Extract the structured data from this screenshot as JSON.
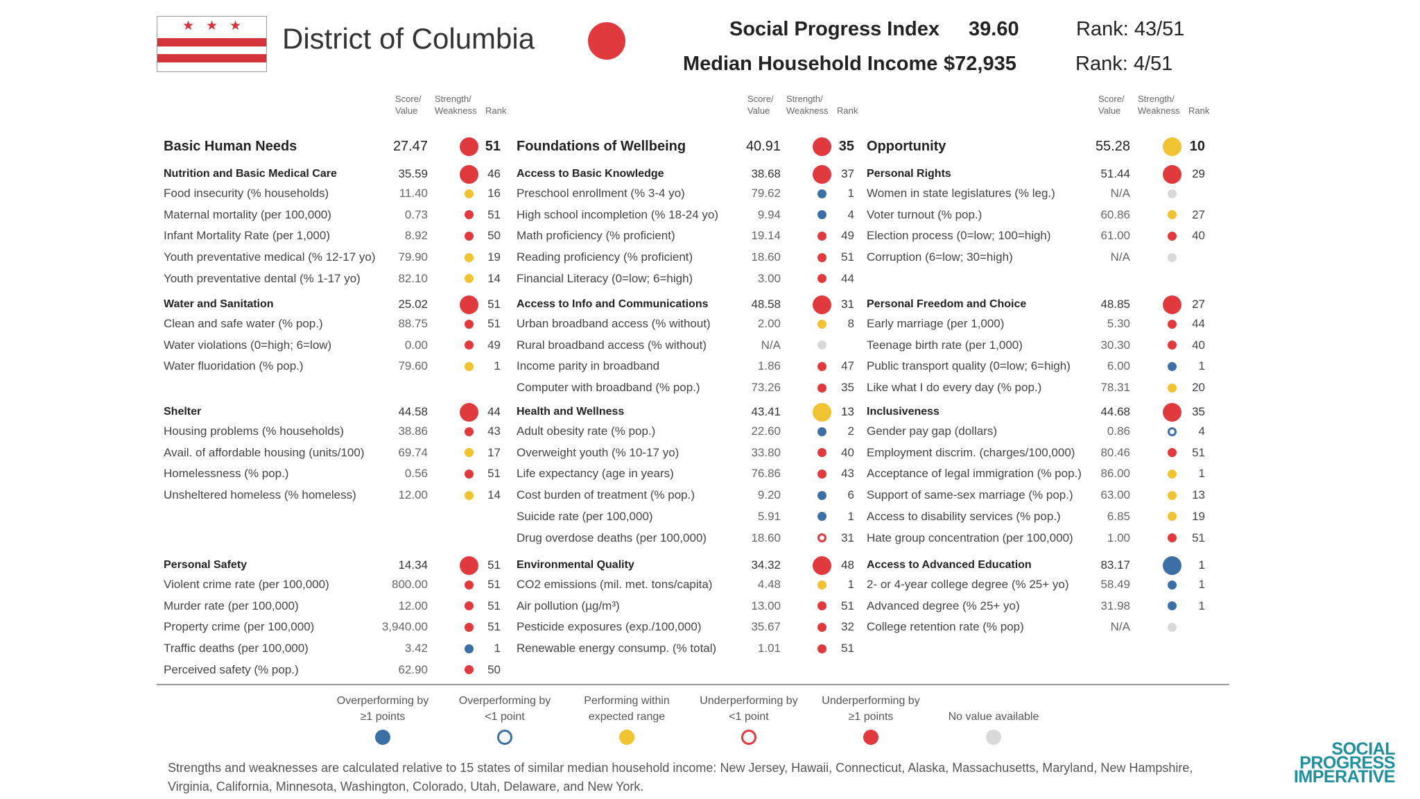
{
  "header": {
    "state": "District of Columbia",
    "spi_label": "Social Progress Index",
    "spi_value": "39.60",
    "spi_rank": "Rank: 43/51",
    "income_label": "Median Household Income",
    "income_value": "$72,935",
    "income_rank": "Rank: 4/51",
    "overall_status": "under1"
  },
  "flag": {
    "stars": "★★★"
  },
  "column_headers": {
    "score": "Score/",
    "score2": "Value",
    "strength": "Strength/",
    "strength2": "Weakness",
    "rank": "Rank"
  },
  "colors": {
    "over1": "#3b6fa6",
    "over": "#3b6fa6",
    "within": "#f1c232",
    "under": "#e0393e",
    "under1": "#e0393e",
    "na": "#d9d9d9"
  },
  "columns": [
    {
      "dimension": {
        "label": "Basic Human Needs",
        "value": "27.47",
        "status": "under1",
        "rank": "51"
      },
      "components": [
        {
          "label": "Nutrition and Basic Medical Care",
          "value": "35.59",
          "status": "under1",
          "rank": "46",
          "indicators": [
            {
              "label": "Food insecurity (% households)",
              "value": "11.40",
              "status": "within",
              "rank": "16"
            },
            {
              "label": "Maternal mortality (per 100,000)",
              "value": "0.73",
              "status": "under1",
              "rank": "51"
            },
            {
              "label": "Infant Mortality Rate (per 1,000)",
              "value": "8.92",
              "status": "under1",
              "rank": "50"
            },
            {
              "label": "Youth preventative medical (% 12-17 yo)",
              "value": "79.90",
              "status": "within",
              "rank": "19"
            },
            {
              "label": "Youth preventative dental (% 1-17 yo)",
              "value": "82.10",
              "status": "within",
              "rank": "14"
            }
          ]
        },
        {
          "label": "Water and Sanitation",
          "value": "25.02",
          "status": "under1",
          "rank": "51",
          "indicators": [
            {
              "label": "Clean and safe water (% pop.)",
              "value": "88.75",
              "status": "under1",
              "rank": "51"
            },
            {
              "label": "Water violations (0=high; 6=low)",
              "value": "0.00",
              "status": "under1",
              "rank": "49"
            },
            {
              "label": "Water fluoridation (% pop.)",
              "value": "79.60",
              "status": "within",
              "rank": "1"
            }
          ]
        },
        {
          "label": "Shelter",
          "value": "44.58",
          "status": "under1",
          "rank": "44",
          "indicators": [
            {
              "label": "Housing problems (% households)",
              "value": "38.86",
              "status": "under1",
              "rank": "43"
            },
            {
              "label": "Avail. of affordable housing (units/100)",
              "value": "69.74",
              "status": "within",
              "rank": "17"
            },
            {
              "label": "Homelessness (% pop.)",
              "value": "0.56",
              "status": "under1",
              "rank": "51"
            },
            {
              "label": "Unsheltered homeless (% homeless)",
              "value": "12.00",
              "status": "within",
              "rank": "14"
            }
          ]
        },
        {
          "label": "Personal Safety",
          "value": "14.34",
          "status": "under1",
          "rank": "51",
          "indicators": [
            {
              "label": "Violent crime rate (per 100,000)",
              "value": "800.00",
              "status": "under1",
              "rank": "51"
            },
            {
              "label": "Murder rate (per 100,000)",
              "value": "12.00",
              "status": "under1",
              "rank": "51"
            },
            {
              "label": "Property crime (per 100,000)",
              "value": "3,940.00",
              "status": "under1",
              "rank": "51"
            },
            {
              "label": "Traffic deaths (per 100,000)",
              "value": "3.42",
              "status": "over1",
              "rank": "1"
            },
            {
              "label": "Perceived safety (% pop.)",
              "value": "62.90",
              "status": "under1",
              "rank": "50"
            }
          ]
        }
      ]
    },
    {
      "dimension": {
        "label": "Foundations of Wellbeing",
        "value": "40.91",
        "status": "under1",
        "rank": "35"
      },
      "components": [
        {
          "label": "Access to Basic Knowledge",
          "value": "38.68",
          "status": "under1",
          "rank": "37",
          "indicators": [
            {
              "label": "Preschool enrollment (% 3-4 yo)",
              "value": "79.62",
              "status": "over1",
              "rank": "1"
            },
            {
              "label": "High school incompletion (% 18-24 yo)",
              "value": "9.94",
              "status": "over1",
              "rank": "4"
            },
            {
              "label": "Math proficiency (% proficient)",
              "value": "19.14",
              "status": "under1",
              "rank": "49"
            },
            {
              "label": "Reading proficiency (% proficient)",
              "value": "18.60",
              "status": "under1",
              "rank": "51"
            },
            {
              "label": "Financial Literacy (0=low; 6=high)",
              "value": "3.00",
              "status": "under1",
              "rank": "44"
            }
          ]
        },
        {
          "label": "Access to Info and Communications",
          "value": "48.58",
          "status": "under1",
          "rank": "31",
          "indicators": [
            {
              "label": "Urban broadband access (% without)",
              "value": "2.00",
              "status": "within",
              "rank": "8"
            },
            {
              "label": "Rural broadband access (% without)",
              "value": "N/A",
              "status": "na",
              "rank": ""
            },
            {
              "label": "Income parity in broadband",
              "value": "1.86",
              "status": "under1",
              "rank": "47"
            },
            {
              "label": "Computer with broadband (% pop.)",
              "value": "73.26",
              "status": "under1",
              "rank": "35"
            }
          ]
        },
        {
          "label": "Health and Wellness",
          "value": "43.41",
          "status": "within",
          "rank": "13",
          "indicators": [
            {
              "label": "Adult obesity rate (% pop.)",
              "value": "22.60",
              "status": "over1",
              "rank": "2"
            },
            {
              "label": "Overweight youth (% 10-17 yo)",
              "value": "33.80",
              "status": "under1",
              "rank": "40"
            },
            {
              "label": "Life expectancy (age in years)",
              "value": "76.86",
              "status": "under1",
              "rank": "43"
            },
            {
              "label": "Cost burden of treatment (% pop.)",
              "value": "9.20",
              "status": "over1",
              "rank": "6"
            },
            {
              "label": "Suicide rate (per 100,000)",
              "value": "5.91",
              "status": "over1",
              "rank": "1"
            },
            {
              "label": "Drug overdose deaths (per 100,000)",
              "value": "18.60",
              "status": "under",
              "rank": "31"
            }
          ]
        },
        {
          "label": "Environmental Quality",
          "value": "34.32",
          "status": "under1",
          "rank": "48",
          "indicators": [
            {
              "label": "CO2 emissions (mil. met. tons/capita)",
              "value": "4.48",
              "status": "within",
              "rank": "1"
            },
            {
              "label": "Air pollution (µg/m³)",
              "value": "13.00",
              "status": "under1",
              "rank": "51"
            },
            {
              "label": "Pesticide exposures (exp./100,000)",
              "value": "35.67",
              "status": "under1",
              "rank": "32"
            },
            {
              "label": "Renewable energy consump. (% total)",
              "value": "1.01",
              "status": "under1",
              "rank": "51"
            }
          ]
        }
      ]
    },
    {
      "dimension": {
        "label": "Opportunity",
        "value": "55.28",
        "status": "within",
        "rank": "10"
      },
      "components": [
        {
          "label": "Personal Rights",
          "value": "51.44",
          "status": "under1",
          "rank": "29",
          "indicators": [
            {
              "label": "Women in state legislatures (% leg.)",
              "value": "N/A",
              "status": "na",
              "rank": ""
            },
            {
              "label": "Voter turnout (% pop.)",
              "value": "60.86",
              "status": "within",
              "rank": "27"
            },
            {
              "label": "Election process (0=low; 100=high)",
              "value": "61.00",
              "status": "under1",
              "rank": "40"
            },
            {
              "label": "Corruption (6=low; 30=high)",
              "value": "N/A",
              "status": "na",
              "rank": ""
            }
          ]
        },
        {
          "label": "Personal Freedom and Choice",
          "value": "48.85",
          "status": "under1",
          "rank": "27",
          "indicators": [
            {
              "label": "Early marriage (per 1,000)",
              "value": "5.30",
              "status": "under1",
              "rank": "44"
            },
            {
              "label": "Teenage birth rate (per 1,000)",
              "value": "30.30",
              "status": "under1",
              "rank": "40"
            },
            {
              "label": "Public transport quality (0=low; 6=high)",
              "value": "6.00",
              "status": "over1",
              "rank": "1"
            },
            {
              "label": "Like what I do every day (% pop.)",
              "value": "78.31",
              "status": "within",
              "rank": "20"
            }
          ]
        },
        {
          "label": "Inclusiveness",
          "value": "44.68",
          "status": "under1",
          "rank": "35",
          "indicators": [
            {
              "label": "Gender pay gap (dollars)",
              "value": "0.86",
              "status": "over",
              "rank": "4"
            },
            {
              "label": "Employment discrim. (charges/100,000)",
              "value": "80.46",
              "status": "under1",
              "rank": "51"
            },
            {
              "label": "Acceptance of legal immigration (% pop.)",
              "value": "86.00",
              "status": "within",
              "rank": "1"
            },
            {
              "label": "Support of same-sex marriage (% pop.)",
              "value": "63.00",
              "status": "within",
              "rank": "13"
            },
            {
              "label": "Access to disability services (% pop.)",
              "value": "6.85",
              "status": "within",
              "rank": "19"
            },
            {
              "label": "Hate group concentration (per 100,000)",
              "value": "1.00",
              "status": "under1",
              "rank": "51"
            }
          ]
        },
        {
          "label": "Access to Advanced Education",
          "value": "83.17",
          "status": "over1",
          "rank": "1",
          "indicators": [
            {
              "label": "2- or 4-year college degree (% 25+ yo)",
              "value": "58.49",
              "status": "over1",
              "rank": "1"
            },
            {
              "label": "Advanced degree (% 25+ yo)",
              "value": "31.98",
              "status": "over1",
              "rank": "1"
            },
            {
              "label": "College retention rate (% pop)",
              "value": "N/A",
              "status": "na",
              "rank": ""
            }
          ]
        }
      ]
    }
  ],
  "legend": [
    {
      "line1": "Overperforming by",
      "line2": "≥1 points",
      "status": "over1"
    },
    {
      "line1": "Overperforming by",
      "line2": "<1 point",
      "status": "over"
    },
    {
      "line1": "Performing within",
      "line2": "expected range",
      "status": "within"
    },
    {
      "line1": "Underperforming by",
      "line2": "<1 point",
      "status": "under"
    },
    {
      "line1": "Underperforming by",
      "line2": "≥1 points",
      "status": "under1"
    },
    {
      "line1": "",
      "line2": "No value available",
      "status": "na"
    }
  ],
  "footnote": "Strengths and weaknesses are calculated relative to 15 states of similar median household income: New Jersey, Hawaii, Connecticut, Alaska, Massachusetts, Maryland, New Hampshire, Virginia, California, Minnesota, Washington, Colorado, Utah, Delaware, and New York.",
  "logo": {
    "line1": "SOCIAL",
    "line2": "PROGRESS",
    "line3": "IMPERATIVE"
  }
}
